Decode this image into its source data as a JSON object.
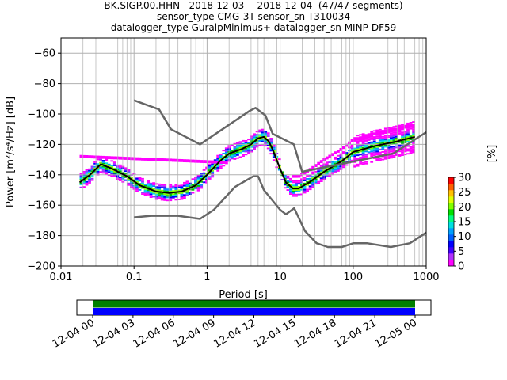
{
  "title_lines": [
    "BK.SIGP.00.HHN   2018-12-03 -- 2018-12-04  (47/47 segments)",
    "sensor_type CMG-3T sensor_sn T310034",
    "datalogger_type GuralpMinimus+ datalogger_sn MINP-DF59"
  ],
  "chart_data": {
    "type": "heatmap",
    "xlabel": "Period [s]",
    "ylabel": "Power [m²/s⁴/Hz] [dB]",
    "x_scale": "log",
    "xlim": [
      0.01,
      1000
    ],
    "ylim": [
      -200,
      -50
    ],
    "x_ticks": [
      0.01,
      0.1,
      1,
      10,
      100,
      1000
    ],
    "x_tick_labels": [
      "0.01",
      "0.1",
      "1",
      "10",
      "100",
      "1000"
    ],
    "y_ticks": [
      -200,
      -180,
      -160,
      -140,
      -120,
      -100,
      -80,
      -60
    ],
    "y_tick_labels": [
      "−200",
      "−180",
      "−160",
      "−140",
      "−120",
      "−100",
      "−80",
      "−60"
    ],
    "grid": true,
    "colorbar": {
      "label": "[%]",
      "range": [
        0,
        30
      ],
      "ticks": [
        0,
        5,
        10,
        15,
        20,
        25,
        30
      ]
    },
    "series": [
      {
        "role": "mode",
        "color": "#000000",
        "x": [
          0.018,
          0.025,
          0.035,
          0.05,
          0.08,
          0.12,
          0.2,
          0.3,
          0.45,
          0.7,
          1,
          1.5,
          2,
          3,
          4,
          5,
          6,
          7,
          8,
          10,
          12,
          15,
          18,
          25,
          40,
          70,
          100,
          200,
          400,
          700
        ],
        "y": [
          -145,
          -140,
          -133,
          -136,
          -141,
          -147,
          -151,
          -152,
          -151,
          -147,
          -140,
          -131,
          -126,
          -123,
          -120,
          -116,
          -115,
          -118,
          -124,
          -136,
          -145,
          -149,
          -149,
          -145,
          -138,
          -131,
          -125,
          -121,
          -118,
          -115
        ]
      },
      {
        "role": "high-noise-model",
        "color": "#666666",
        "x": [
          0.1,
          0.22,
          0.32,
          0.8,
          3.8,
          4.6,
          6.3,
          7.9,
          15.4,
          20,
          354.8,
          1000
        ],
        "y": [
          -91,
          -97,
          -110,
          -120,
          -98,
          -96,
          -101,
          -113,
          -120,
          -138,
          -126,
          -112
        ]
      },
      {
        "role": "low-noise-model",
        "color": "#666666",
        "x": [
          0.1,
          0.17,
          0.4,
          0.8,
          1.24,
          2.4,
          4.3,
          5,
          6,
          10,
          12,
          15.6,
          21.9,
          31.6,
          45,
          70,
          101,
          154,
          328,
          600,
          1000
        ],
        "y": [
          -168,
          -167,
          -167,
          -169,
          -163,
          -148,
          -141,
          -141,
          -150,
          -163,
          -166,
          -162,
          -177,
          -185,
          -187.5,
          -187.5,
          -185,
          -185,
          -187.5,
          -185,
          -178
        ]
      }
    ],
    "timeline": {
      "tick_labels": [
        "12-04 00",
        "12-04 03",
        "12-04 06",
        "12-04 09",
        "12-04 12",
        "12-04 15",
        "12-04 18",
        "12-04 21",
        "12-05 00"
      ],
      "bars": [
        {
          "color": "#008000",
          "from": 0,
          "to": 24
        },
        {
          "color": "#0000ff",
          "from": 0,
          "to": 24
        }
      ]
    }
  }
}
